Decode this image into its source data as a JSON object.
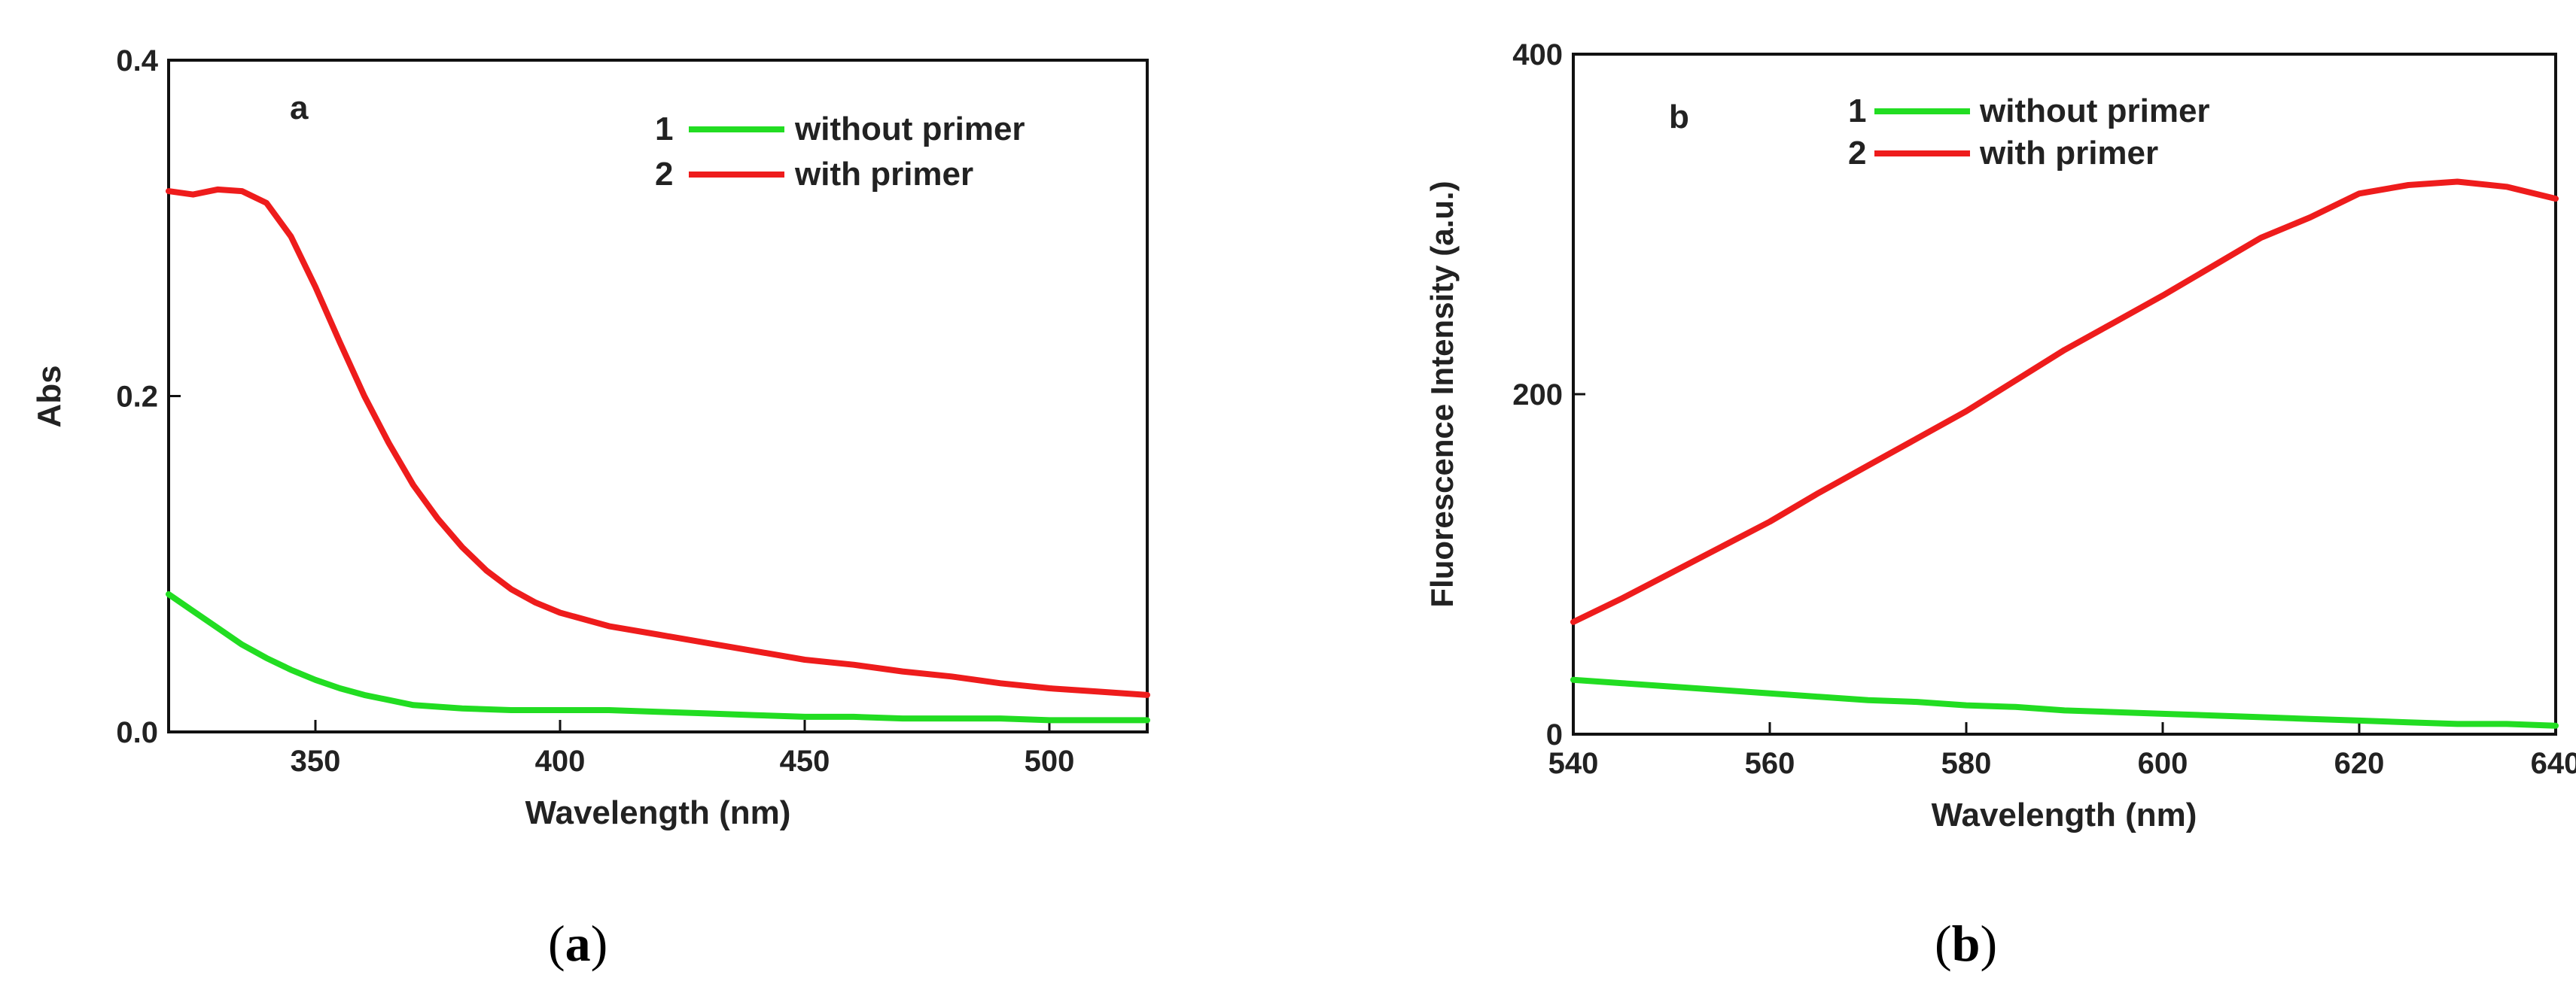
{
  "chart_data": [
    {
      "id": "a",
      "type": "line",
      "panel_label": "a",
      "xlabel": "Wavelength (nm)",
      "ylabel": "Abs",
      "xlim": [
        320,
        520
      ],
      "ylim": [
        0.0,
        0.4
      ],
      "xticks": [
        350,
        400,
        450,
        500
      ],
      "yticks": [
        0.0,
        0.2,
        0.4
      ],
      "ytick_labels": [
        "0.0",
        "0.2",
        "0.4"
      ],
      "grid": false,
      "legend": "top-right",
      "series": [
        {
          "name": "without primer",
          "legend_index": "1",
          "color": "#22dd22",
          "x": [
            320,
            325,
            330,
            335,
            340,
            345,
            350,
            355,
            360,
            365,
            370,
            380,
            390,
            400,
            410,
            420,
            430,
            440,
            450,
            460,
            470,
            480,
            490,
            500,
            510,
            520
          ],
          "y": [
            0.082,
            0.072,
            0.062,
            0.052,
            0.044,
            0.037,
            0.031,
            0.026,
            0.022,
            0.019,
            0.016,
            0.014,
            0.013,
            0.013,
            0.013,
            0.012,
            0.011,
            0.01,
            0.009,
            0.009,
            0.008,
            0.008,
            0.008,
            0.007,
            0.007,
            0.007
          ]
        },
        {
          "name": "with primer",
          "legend_index": "2",
          "color": "#ee1c1c",
          "x": [
            320,
            325,
            330,
            335,
            340,
            345,
            350,
            355,
            360,
            365,
            370,
            375,
            380,
            385,
            390,
            395,
            400,
            410,
            420,
            430,
            440,
            450,
            460,
            470,
            480,
            490,
            500,
            510,
            520
          ],
          "y": [
            0.322,
            0.32,
            0.323,
            0.322,
            0.315,
            0.295,
            0.265,
            0.232,
            0.2,
            0.172,
            0.147,
            0.127,
            0.11,
            0.096,
            0.085,
            0.077,
            0.071,
            0.063,
            0.058,
            0.053,
            0.048,
            0.043,
            0.04,
            0.036,
            0.033,
            0.029,
            0.026,
            0.024,
            0.022
          ]
        }
      ]
    },
    {
      "id": "b",
      "type": "line",
      "panel_label": "b",
      "xlabel": "Wavelength (nm)",
      "ylabel": "Fluorescence Intensity (a.u.)",
      "xlim": [
        540,
        640
      ],
      "ylim": [
        0,
        400
      ],
      "xticks": [
        540,
        560,
        580,
        600,
        620,
        640
      ],
      "yticks": [
        0,
        200,
        400
      ],
      "ytick_labels": [
        "0",
        "200",
        "400"
      ],
      "grid": false,
      "legend": "top-left",
      "series": [
        {
          "name": "without primer",
          "legend_index": "1",
          "color": "#22dd22",
          "x": [
            540,
            545,
            550,
            555,
            560,
            565,
            570,
            575,
            580,
            585,
            590,
            595,
            600,
            605,
            610,
            615,
            620,
            625,
            630,
            635,
            640
          ],
          "y": [
            32,
            30,
            28,
            26,
            24,
            22,
            20,
            19,
            17,
            16,
            14,
            13,
            12,
            11,
            10,
            9,
            8,
            7,
            6,
            6,
            5
          ]
        },
        {
          "name": "with primer",
          "legend_index": "2",
          "color": "#ee1c1c",
          "x": [
            540,
            545,
            550,
            555,
            560,
            565,
            570,
            575,
            580,
            585,
            590,
            595,
            600,
            605,
            610,
            615,
            620,
            625,
            630,
            635,
            640
          ],
          "y": [
            66,
            80,
            95,
            110,
            125,
            142,
            158,
            174,
            190,
            208,
            226,
            242,
            258,
            275,
            292,
            304,
            318,
            323,
            325,
            322,
            315
          ]
        }
      ]
    }
  ],
  "captions": {
    "a": "a",
    "b": "b"
  }
}
